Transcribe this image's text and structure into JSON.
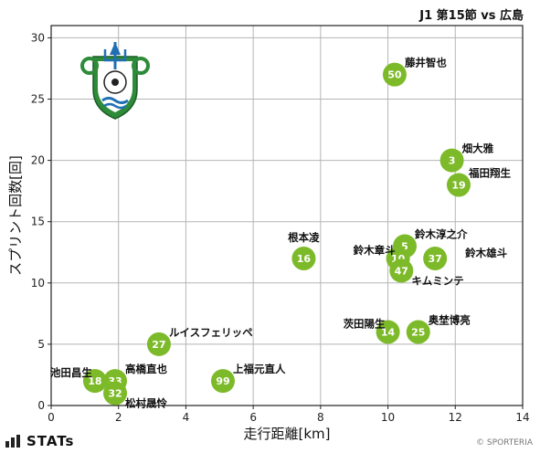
{
  "header": {
    "title": "J1 第15節 vs 広島"
  },
  "footer": {
    "logo_text": "STATs",
    "copyright": "© SPORTERIA"
  },
  "colors": {
    "point": "#7dba29",
    "grid": "#b5b5b5",
    "frame": "#222222",
    "crest_green": "#2e8b3a",
    "crest_blue": "#1f6fb4"
  },
  "chart_data": {
    "type": "scatter",
    "title": "J1 第15節 vs 広島",
    "xlabel": "走行距離[km]",
    "ylabel": "スプリント回数[回]",
    "xlim": [
      0,
      14
    ],
    "ylim": [
      0,
      31
    ],
    "xticks": [
      0,
      2,
      4,
      6,
      8,
      10,
      12,
      14
    ],
    "yticks": [
      0,
      5,
      10,
      15,
      20,
      25,
      30
    ],
    "grid": true,
    "points": [
      {
        "number": "50",
        "name": "藤井智也",
        "x": 10.2,
        "y": 27,
        "label_pos": "upper-right"
      },
      {
        "number": "3",
        "name": "畑大雅",
        "x": 11.9,
        "y": 20,
        "label_pos": "upper-right"
      },
      {
        "number": "19",
        "name": "福田翔生",
        "x": 12.1,
        "y": 18,
        "label_pos": "upper-right"
      },
      {
        "number": "16",
        "name": "根本凌",
        "x": 7.5,
        "y": 12,
        "label_pos": "top"
      },
      {
        "number": "5",
        "name": "鈴木淳之介",
        "x": 10.5,
        "y": 13,
        "label_pos": "upper-right"
      },
      {
        "number": "10",
        "name": "鈴木章斗",
        "x": 10.3,
        "y": 12,
        "label_pos": "left"
      },
      {
        "number": "37",
        "name": "鈴木雄斗",
        "x": 11.4,
        "y": 12,
        "label_pos": "right"
      },
      {
        "number": "47",
        "name": "キムミンテ",
        "x": 10.4,
        "y": 11,
        "label_pos": "lower-right"
      },
      {
        "number": "14",
        "name": "茨田陽生",
        "x": 10.0,
        "y": 6,
        "label_pos": "left"
      },
      {
        "number": "25",
        "name": "奥埜博亮",
        "x": 10.9,
        "y": 6,
        "label_pos": "upper-right"
      },
      {
        "number": "27",
        "name": "ルイスフェリッペ",
        "x": 3.2,
        "y": 5,
        "label_pos": "upper-right"
      },
      {
        "number": "99",
        "name": "上福元直人",
        "x": 5.1,
        "y": 2,
        "label_pos": "upper-right"
      },
      {
        "number": "18",
        "name": "池田昌生",
        "x": 1.3,
        "y": 2,
        "label_pos": "left"
      },
      {
        "number": "33",
        "name": "高橋直也",
        "x": 1.9,
        "y": 2,
        "label_pos": "upper-right"
      },
      {
        "number": "32",
        "name": "松村晟怜",
        "x": 1.9,
        "y": 1,
        "label_pos": "lower-right"
      }
    ]
  }
}
